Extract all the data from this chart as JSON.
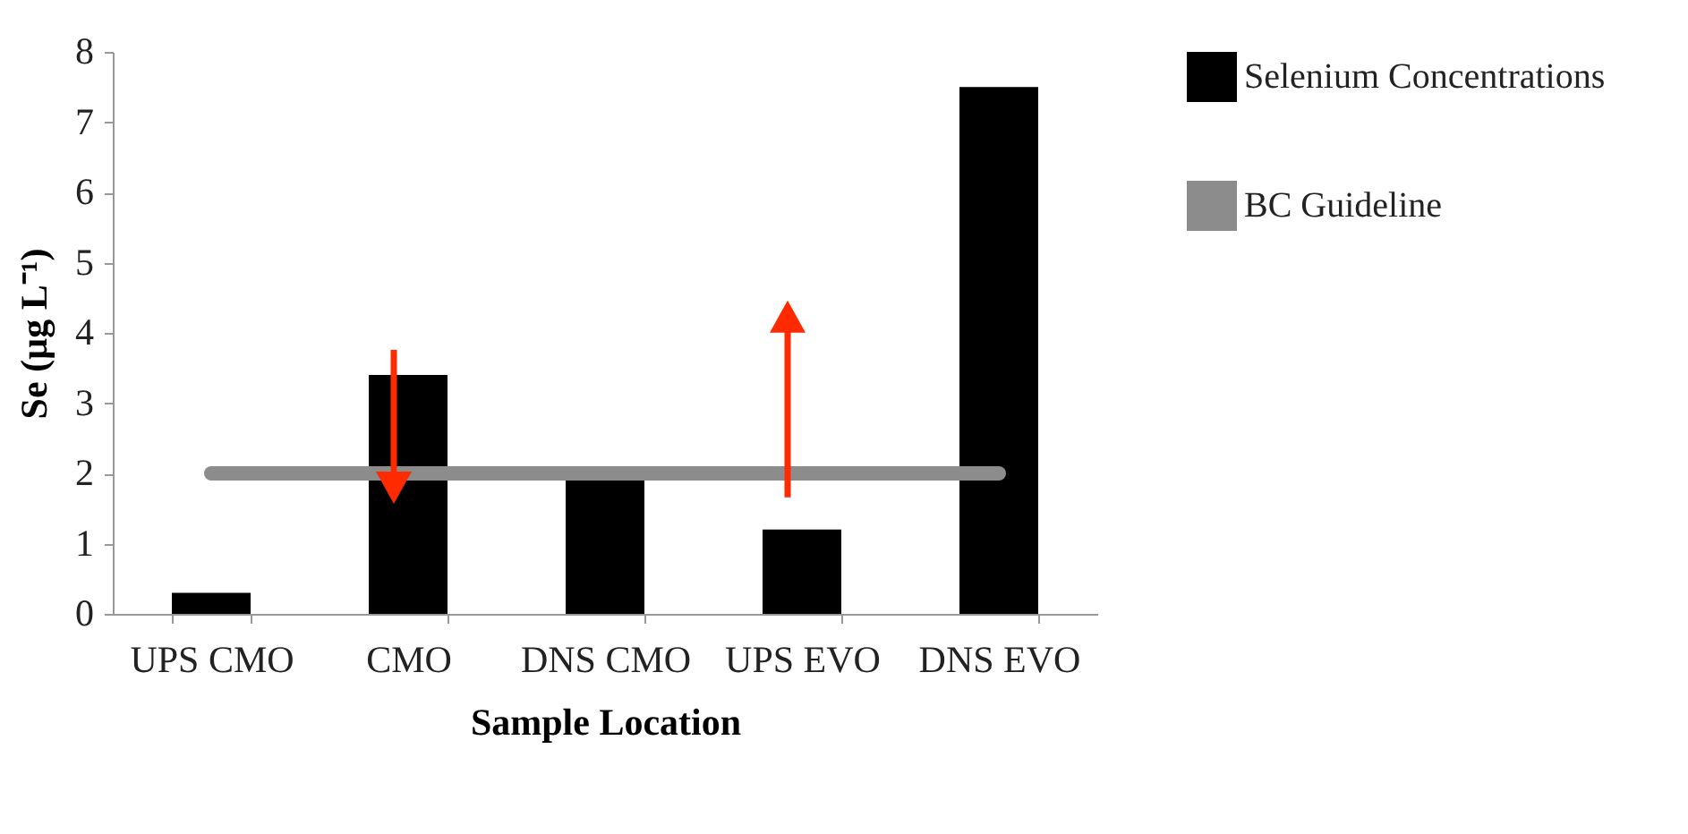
{
  "chart_data": {
    "type": "bar",
    "xlabel": "Sample Location",
    "ylabel": "Se (µg L⁻¹)",
    "categories": [
      "UPS CMO",
      "CMO",
      "DNS CMO",
      "UPS EVO",
      "DNS EVO"
    ],
    "series": [
      {
        "name": "Selenium Concentrations",
        "color": "#000000",
        "values": [
          0.3,
          3.4,
          1.9,
          1.2,
          7.5
        ]
      },
      {
        "name": "BC Guideline",
        "type": "line",
        "color": "#8c8c8c",
        "values": [
          2,
          2,
          2,
          2,
          2
        ]
      }
    ],
    "ylim": [
      0,
      8
    ],
    "yticks": [
      0,
      1,
      2,
      3,
      4,
      5,
      6,
      7,
      8
    ],
    "grid": false,
    "legend": "right",
    "marker": "none",
    "line_style": "solid"
  }
}
